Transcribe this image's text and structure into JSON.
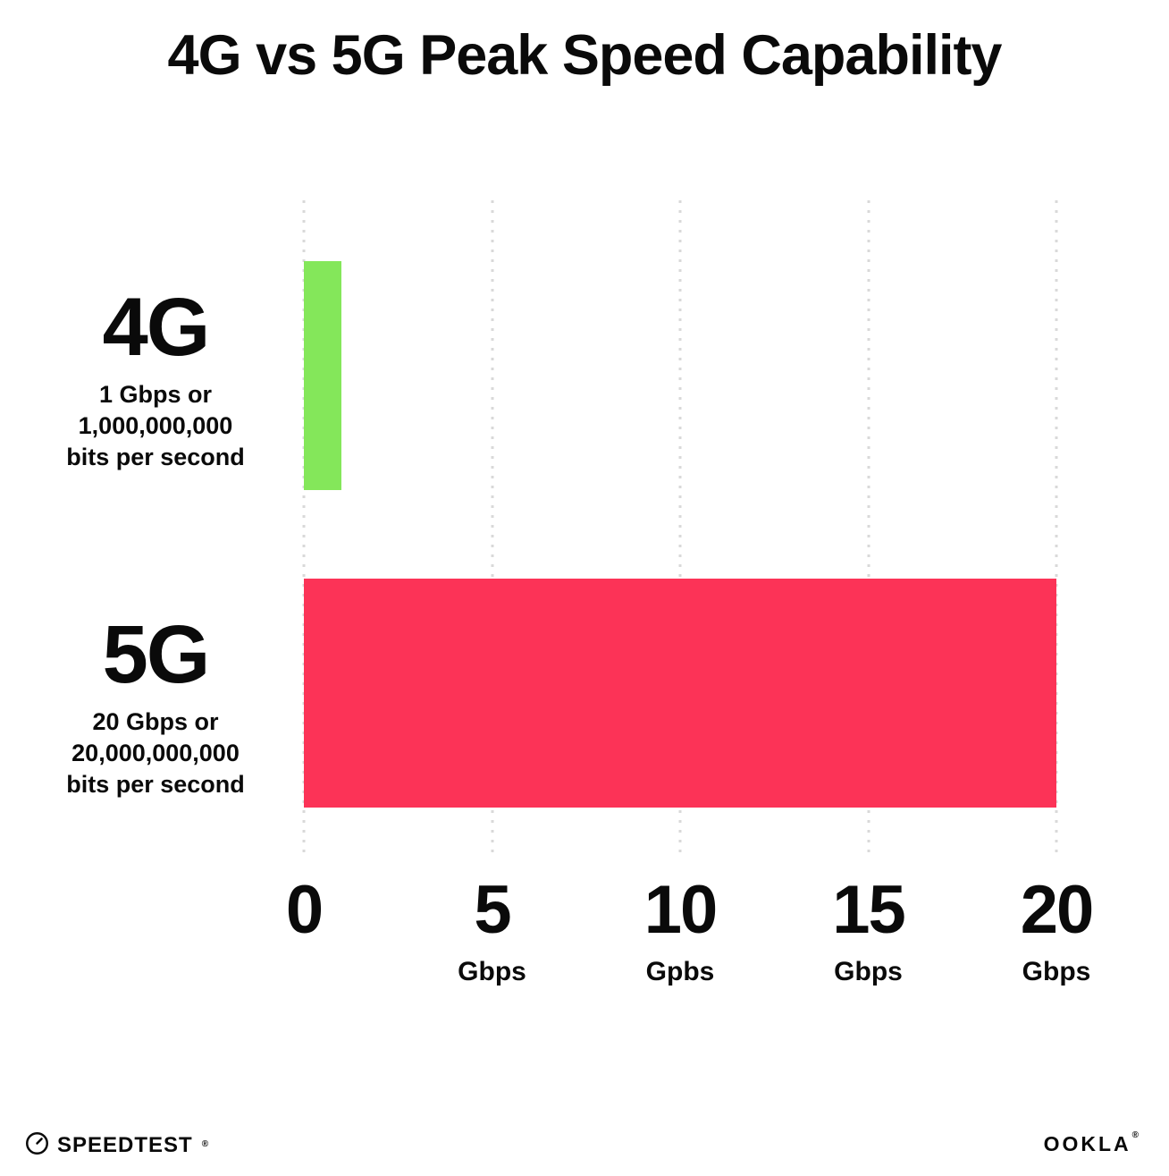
{
  "title": "4G vs 5G Peak Speed Capability",
  "chart_data": {
    "type": "bar",
    "orientation": "horizontal",
    "title": "4G vs 5G Peak Speed Capability",
    "categories": [
      "4G",
      "5G"
    ],
    "values": [
      1,
      20
    ],
    "xlim": [
      0,
      20
    ],
    "x_unit": "Gbps",
    "bar_colors": [
      "#84e75a",
      "#fc3357"
    ],
    "grid": "vertical dotted gridlines at each tick",
    "legend": "none",
    "rows": [
      {
        "label": "4G",
        "sublines": [
          "1 Gbps or",
          "1,000,000,000",
          "bits per second"
        ],
        "value": 1
      },
      {
        "label": "5G",
        "sublines": [
          "20 Gbps or",
          "20,000,000,000",
          "bits per second"
        ],
        "value": 20
      }
    ],
    "x_ticks": [
      {
        "value": "0",
        "unit": ""
      },
      {
        "value": "5",
        "unit": "Gbps"
      },
      {
        "value": "10",
        "unit": "Gpbs"
      },
      {
        "value": "15",
        "unit": "Gbps"
      },
      {
        "value": "20",
        "unit": "Gbps"
      }
    ]
  },
  "footer": {
    "speedtest_label": "SPEEDTEST",
    "speedtest_mark": "®",
    "ookla_label": "OOKLA",
    "ookla_mark": "®"
  }
}
